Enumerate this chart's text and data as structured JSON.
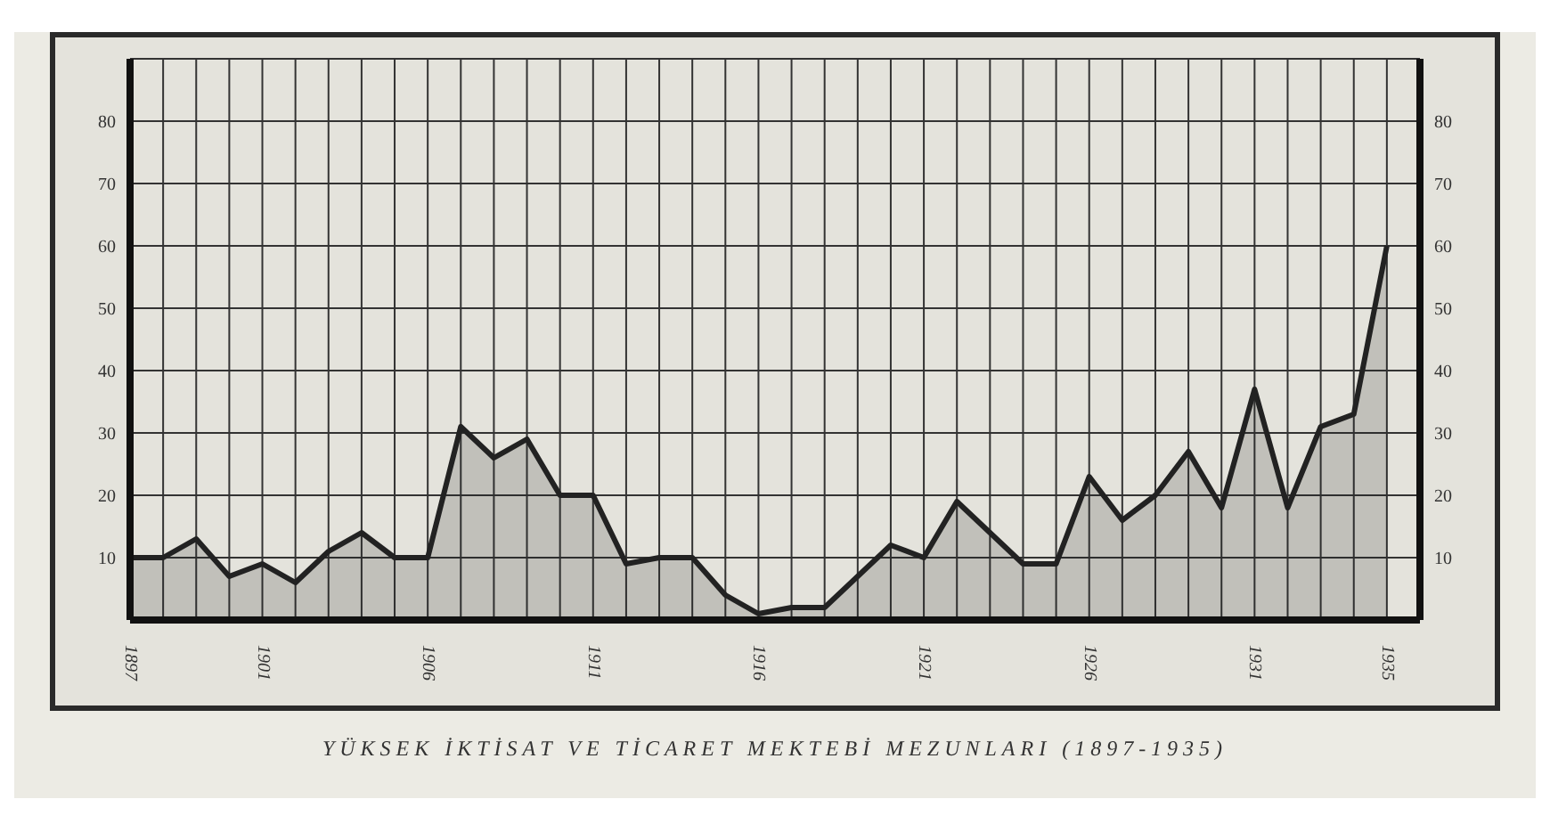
{
  "chart_data": {
    "type": "area",
    "title": "YÜKSEK İKTİSAT VE TİCARET MEKTEBİ MEZUNLARI (1897-1935)",
    "x": [
      1897,
      1898,
      1899,
      1900,
      1901,
      1902,
      1903,
      1904,
      1905,
      1906,
      1907,
      1908,
      1909,
      1910,
      1911,
      1912,
      1913,
      1914,
      1915,
      1916,
      1917,
      1918,
      1919,
      1920,
      1921,
      1922,
      1923,
      1924,
      1925,
      1926,
      1927,
      1928,
      1929,
      1930,
      1931,
      1932,
      1933,
      1934,
      1935
    ],
    "series": [
      {
        "color": "#222222",
        "values": [
          10,
          10,
          13,
          7,
          9,
          6,
          11,
          14,
          10,
          10,
          31,
          26,
          29,
          20,
          20,
          9,
          10,
          10,
          4,
          1,
          2,
          2,
          7,
          12,
          10,
          19,
          14,
          9,
          9,
          23,
          16,
          20,
          27,
          18,
          37,
          18,
          31,
          33,
          60
        ]
      }
    ],
    "xlim": [
      1897,
      1936
    ],
    "xticks": [
      1897,
      {
        "value": 1898,
        "label": null
      },
      {
        "value": 1899,
        "label": null
      },
      {
        "value": 1900,
        "label": null
      },
      1901,
      {
        "value": 1902,
        "label": null
      },
      {
        "value": 1903,
        "label": null
      },
      {
        "value": 1904,
        "label": null
      },
      {
        "value": 1905,
        "label": null
      },
      1906,
      {
        "value": 1907,
        "label": null
      },
      {
        "value": 1908,
        "label": null
      },
      {
        "value": 1909,
        "label": null
      },
      {
        "value": 1910,
        "label": null
      },
      1911,
      {
        "value": 1912,
        "label": null
      },
      {
        "value": 1913,
        "label": null
      },
      {
        "value": 1914,
        "label": null
      },
      {
        "value": 1915,
        "label": null
      },
      1916,
      {
        "value": 1917,
        "label": null
      },
      {
        "value": 1918,
        "label": null
      },
      {
        "value": 1919,
        "label": null
      },
      {
        "value": 1920,
        "label": null
      },
      1921,
      {
        "value": 1922,
        "label": null
      },
      {
        "value": 1923,
        "label": null
      },
      {
        "value": 1924,
        "label": null
      },
      {
        "value": 1925,
        "label": null
      },
      1926,
      {
        "value": 1927,
        "label": null
      },
      {
        "value": 1928,
        "label": null
      },
      {
        "value": 1929,
        "label": null
      },
      {
        "value": 1930,
        "label": null
      },
      1931,
      {
        "value": 1932,
        "label": null
      },
      {
        "value": 1933,
        "label": null
      },
      {
        "value": 1934,
        "label": null
      },
      1935,
      {
        "value": 1936,
        "label": null
      }
    ],
    "ylim": [
      0,
      90
    ],
    "yticks": [
      10,
      20,
      30,
      40,
      50,
      60,
      70,
      80
    ],
    "y2lim": [
      0,
      90
    ],
    "y2ticks": [
      10,
      20,
      30,
      40,
      50,
      60,
      70,
      80
    ],
    "grid": true,
    "legend": false,
    "marker": "none",
    "line_style": "solid"
  }
}
